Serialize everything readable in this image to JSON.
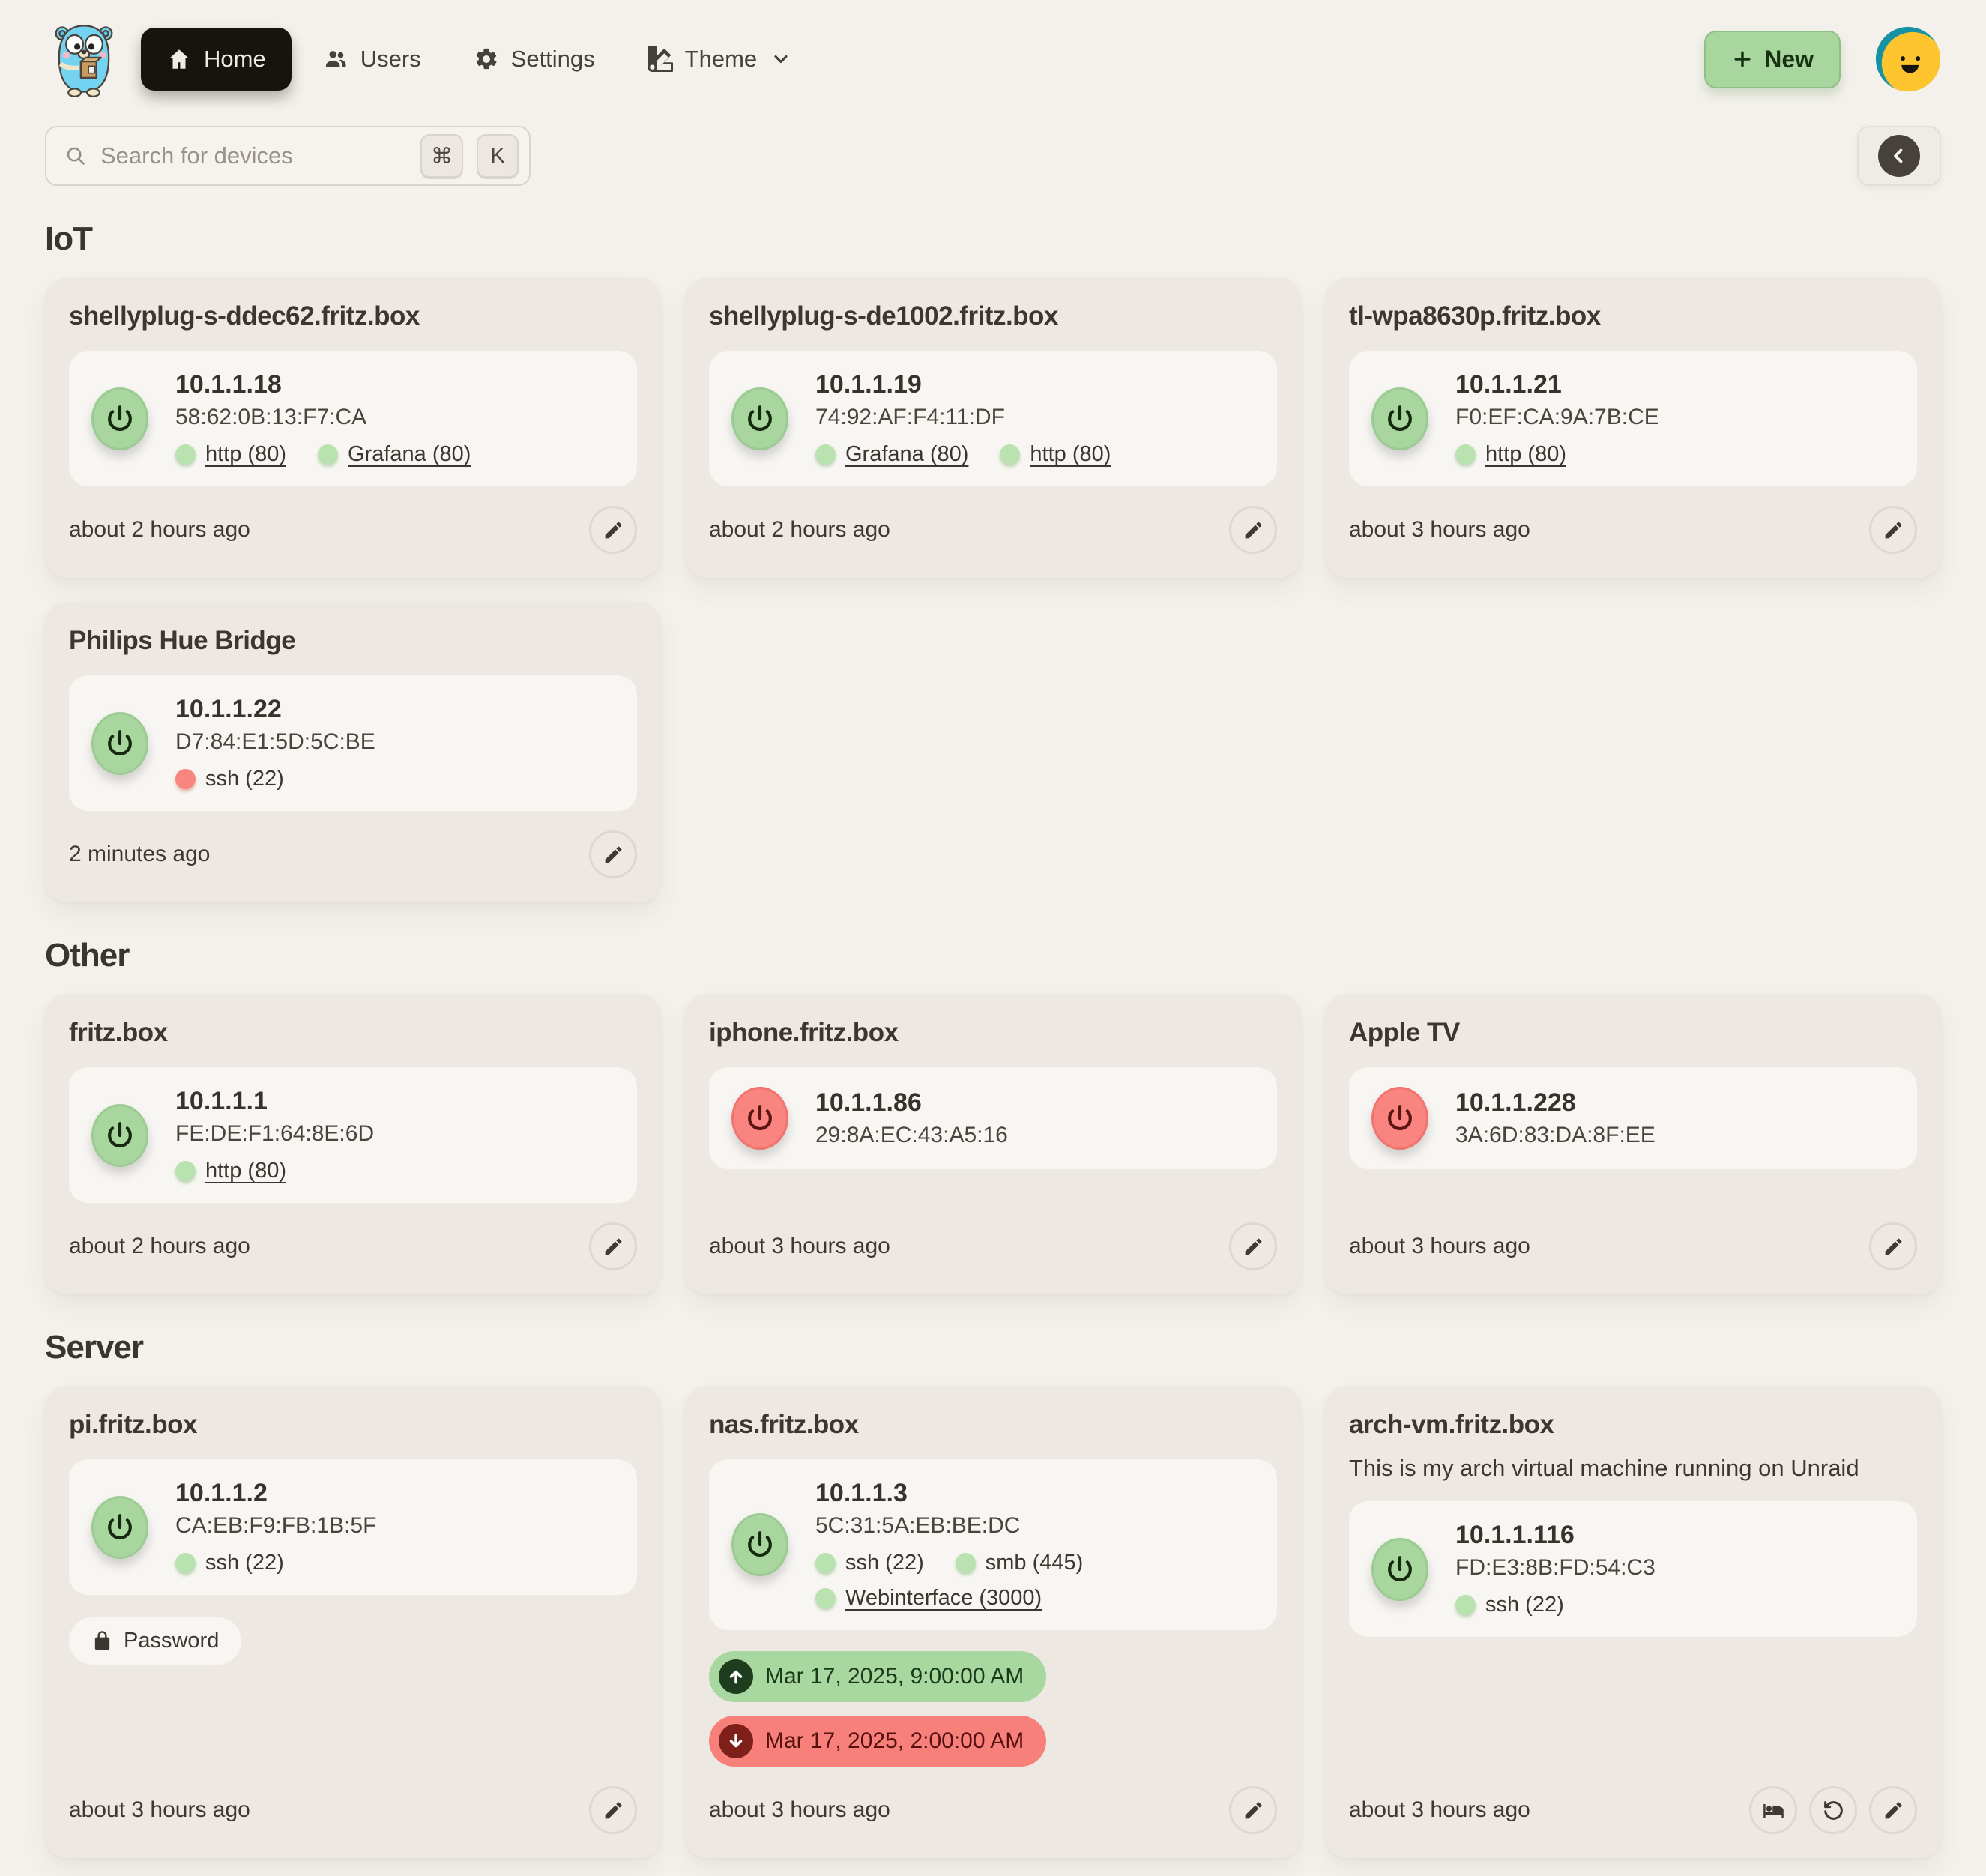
{
  "nav": {
    "items": [
      {
        "label": "Home",
        "icon": "home-icon",
        "active": true,
        "dropdown": false
      },
      {
        "label": "Users",
        "icon": "users-icon",
        "active": false,
        "dropdown": false
      },
      {
        "label": "Settings",
        "icon": "settings-icon",
        "active": false,
        "dropdown": false
      },
      {
        "label": "Theme",
        "icon": "theme-icon",
        "active": false,
        "dropdown": true
      }
    ],
    "new_button": {
      "label": "New",
      "icon": "plus-icon"
    }
  },
  "search": {
    "placeholder": "Search for devices",
    "shortcut_keys": [
      "⌘",
      "K"
    ]
  },
  "toolbar": {
    "sort_icon": "chevron-left-icon"
  },
  "colors": {
    "page_bg": "#F4F1EC",
    "card_bg": "#EEE8E2",
    "panel_bg": "#F8F6F2",
    "accent_green": "#A9D69F",
    "accent_red": "#F98480",
    "dot_green": "#BAE2B0",
    "dot_red": "#F9867E",
    "nav_active_bg": "#17140F",
    "text": "#3B362F"
  },
  "sections": [
    {
      "title": "IoT",
      "devices": [
        {
          "name": "shellyplug-s-ddec62.fritz.box",
          "ip": "10.1.1.18",
          "mac": "58:62:0B:13:F7:CA",
          "power": "on",
          "ports": [
            {
              "label": "http (80)",
              "status": "up",
              "link": true
            },
            {
              "label": "Grafana (80)",
              "status": "up",
              "link": true
            }
          ],
          "updated": "about 2 hours ago",
          "actions": [
            "edit"
          ]
        },
        {
          "name": "shellyplug-s-de1002.fritz.box",
          "ip": "10.1.1.19",
          "mac": "74:92:AF:F4:11:DF",
          "power": "on",
          "ports": [
            {
              "label": "Grafana (80)",
              "status": "up",
              "link": true
            },
            {
              "label": "http (80)",
              "status": "up",
              "link": true
            }
          ],
          "updated": "about 2 hours ago",
          "actions": [
            "edit"
          ]
        },
        {
          "name": "tl-wpa8630p.fritz.box",
          "ip": "10.1.1.21",
          "mac": "F0:EF:CA:9A:7B:CE",
          "power": "on",
          "ports": [
            {
              "label": "http (80)",
              "status": "up",
              "link": true
            }
          ],
          "updated": "about 3 hours ago",
          "actions": [
            "edit"
          ]
        },
        {
          "name": "Philips Hue Bridge",
          "ip": "10.1.1.22",
          "mac": "D7:84:E1:5D:5C:BE",
          "power": "on",
          "ports": [
            {
              "label": "ssh (22)",
              "status": "down",
              "link": false
            }
          ],
          "updated": "2 minutes ago",
          "actions": [
            "edit"
          ]
        }
      ]
    },
    {
      "title": "Other",
      "devices": [
        {
          "name": "fritz.box",
          "ip": "10.1.1.1",
          "mac": "FE:DE:F1:64:8E:6D",
          "power": "on",
          "ports": [
            {
              "label": "http (80)",
              "status": "up",
              "link": true
            }
          ],
          "updated": "about 2 hours ago",
          "actions": [
            "edit"
          ]
        },
        {
          "name": "iphone.fritz.box",
          "ip": "10.1.1.86",
          "mac": "29:8A:EC:43:A5:16",
          "power": "off",
          "ports": [],
          "updated": "about 3 hours ago",
          "actions": [
            "edit"
          ]
        },
        {
          "name": "Apple TV",
          "ip": "10.1.1.228",
          "mac": "3A:6D:83:DA:8F:EE",
          "power": "off",
          "ports": [],
          "updated": "about 3 hours ago",
          "actions": [
            "edit"
          ]
        }
      ]
    },
    {
      "title": "Server",
      "devices": [
        {
          "name": "pi.fritz.box",
          "ip": "10.1.1.2",
          "mac": "CA:EB:F9:FB:1B:5F",
          "power": "on",
          "ports": [
            {
              "label": "ssh (22)",
              "status": "up",
              "link": false
            }
          ],
          "chips": [
            {
              "label": "Password",
              "icon": "lock-icon"
            }
          ],
          "updated": "about 3 hours ago",
          "actions": [
            "edit"
          ]
        },
        {
          "name": "nas.fritz.box",
          "ip": "10.1.1.3",
          "mac": "5C:31:5A:EB:BE:DC",
          "power": "on",
          "ports": [
            {
              "label": "ssh (22)",
              "status": "up",
              "link": false
            },
            {
              "label": "smb (445)",
              "status": "up",
              "link": false
            },
            {
              "label": "Webinterface (3000)",
              "status": "up",
              "link": true
            }
          ],
          "schedules": [
            {
              "type": "wake",
              "label": "Mar 17, 2025, 9:00:00 AM"
            },
            {
              "type": "shutdown",
              "label": "Mar 17, 2025, 2:00:00 AM"
            }
          ],
          "updated": "about 3 hours ago",
          "actions": [
            "edit"
          ]
        },
        {
          "name": "arch-vm.fritz.box",
          "description": "This is my arch virtual machine running on Unraid",
          "ip": "10.1.1.116",
          "mac": "FD:E3:8B:FD:54:C3",
          "power": "on",
          "ports": [
            {
              "label": "ssh (22)",
              "status": "up",
              "link": false
            }
          ],
          "updated": "about 3 hours ago",
          "actions": [
            "sleep",
            "restart",
            "edit"
          ]
        }
      ]
    }
  ]
}
